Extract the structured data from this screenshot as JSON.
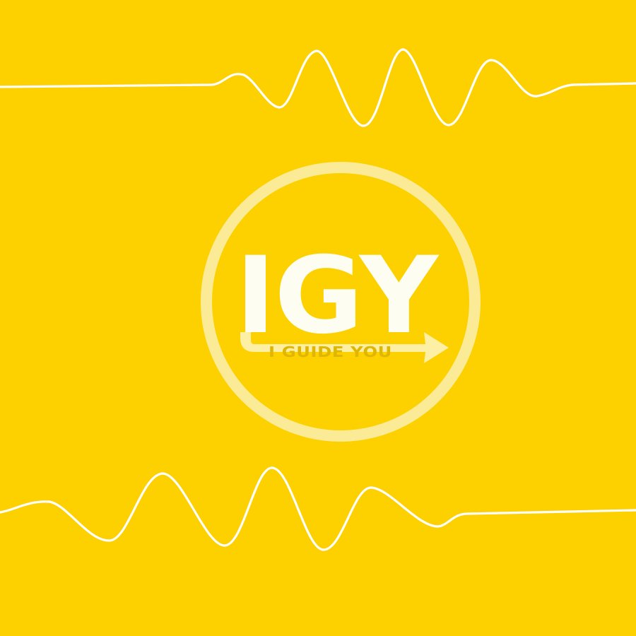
{
  "logo": {
    "mark": "IGY",
    "tagline": "I GUIDE YOU"
  },
  "colors": {
    "background": "#FDD000",
    "wave_stroke": "#FFFFFF",
    "logo_fill": "#FDFDF2",
    "ring_stroke": "#FBEB96",
    "tagline_text": "#E0B600",
    "arrow_fill": "#FDEFA4"
  },
  "decorations": {
    "top_wave": "sine-wave-line",
    "bottom_wave": "sine-wave-line",
    "badge": "circle-ring",
    "arrow": "right-arrow"
  }
}
